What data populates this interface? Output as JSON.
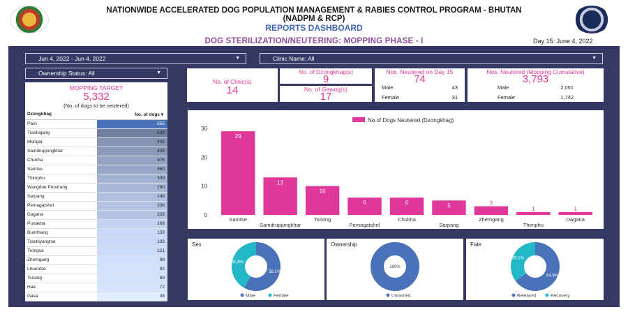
{
  "header": {
    "title_line1": "NATIONWIDE ACCELERATED DOG POPULATION MANAGEMENT & RABIES CONTROL PROGRAM - BHUTAN",
    "title_line2": "(NADPM & RCP)",
    "title_line3": "REPORTS DASHBOARD",
    "subtitle": "DOG STERILIZATION/NEUTERING: MOPPING PHASE - I",
    "day_info": "Day 15: June 4, 2022"
  },
  "filters": {
    "date_range": "Jun 4, 2022 - Jun 4, 2022",
    "clinic": "Clinic Name: All",
    "ownership": "Ownership Status: All"
  },
  "mopping_target": {
    "label": "MOPPING TARGET",
    "value": "5,332",
    "note": "(No. of dogs to be neutered)"
  },
  "table": {
    "col1": "Dzongkhag",
    "col2": "No. of dogs",
    "sort_icon": "caret-down-icon",
    "rows": [
      {
        "name": "Paro",
        "value": 555
      },
      {
        "name": "Trashigang",
        "value": 539
      },
      {
        "name": "Mongar",
        "value": 442
      },
      {
        "name": "Samdrupjongkhar",
        "value": 425
      },
      {
        "name": "Chukha",
        "value": 376
      },
      {
        "name": "Samtse",
        "value": 360
      },
      {
        "name": "Thimphu",
        "value": 309
      },
      {
        "name": "Wangdue Phodrang",
        "value": 280
      },
      {
        "name": "Sarpang",
        "value": 249
      },
      {
        "name": "Pemagatshel",
        "value": 236
      },
      {
        "name": "Dagana",
        "value": 233
      },
      {
        "name": "Punakha",
        "value": 168
      },
      {
        "name": "Bumthang",
        "value": 133
      },
      {
        "name": "Trashiyangtse",
        "value": 133
      },
      {
        "name": "Trongsa",
        "value": 121
      },
      {
        "name": "Zhemgang",
        "value": 98
      },
      {
        "name": "Lhuentse",
        "value": 92
      },
      {
        "name": "Tsirang",
        "value": 89
      },
      {
        "name": "Haa",
        "value": 72
      },
      {
        "name": "Gasa",
        "value": 38
      }
    ]
  },
  "kpis": {
    "clinics_label": "No. of Clinic(s)",
    "clinics_value": "14",
    "dzongkhag_label": "No. of Dzongkhag(s)",
    "dzongkhag_value": "9",
    "gewog_label": "No. of Gewog(s)",
    "gewog_value": "17",
    "day_label": "Nos. Neutered on Day 15",
    "day_value": "74",
    "day_male_label": "Male",
    "day_male_value": "43",
    "day_female_label": "Female",
    "day_female_value": "31",
    "cum_label": "Nos. Neutered (Mopping Cumulative)",
    "cum_value": "3,793",
    "cum_male_label": "Male",
    "cum_male_value": "2,051",
    "cum_female_label": "Female",
    "cum_female_value": "1,742"
  },
  "colors": {
    "pink": "#e0379a",
    "navy": "#363864",
    "blue": "#4a72b8",
    "teal": "#22b8c8"
  },
  "chart_data": [
    {
      "type": "bar",
      "legend": "No.of Dogs Neutered (Dzongkhag)",
      "categories": [
        "Samtse",
        "Samdrupjongkhar",
        "Tsirang",
        "Pemagatshel",
        "Chukha",
        "Sarpang",
        "Zhemgang",
        "Thimphu",
        "Dagana"
      ],
      "values": [
        29,
        13,
        10,
        6,
        6,
        5,
        3,
        1,
        1
      ],
      "yticks": [
        0,
        10,
        20,
        30
      ],
      "ylim": [
        0,
        30
      ]
    },
    {
      "type": "pie",
      "title": "Sex",
      "labels": [
        "Male",
        "Female"
      ],
      "values": [
        58.1,
        41.9
      ],
      "value_labels": [
        "58.1%",
        "41.9%"
      ]
    },
    {
      "type": "pie",
      "title": "Ownership",
      "labels": [
        "Unowned"
      ],
      "values": [
        100
      ],
      "value_labels": [
        "100%"
      ]
    },
    {
      "type": "pie",
      "title": "Fate",
      "labels": [
        "Released",
        "Recovery"
      ],
      "values": [
        64.9,
        35.1
      ],
      "value_labels": [
        "64.9%",
        "35.1%"
      ]
    }
  ]
}
